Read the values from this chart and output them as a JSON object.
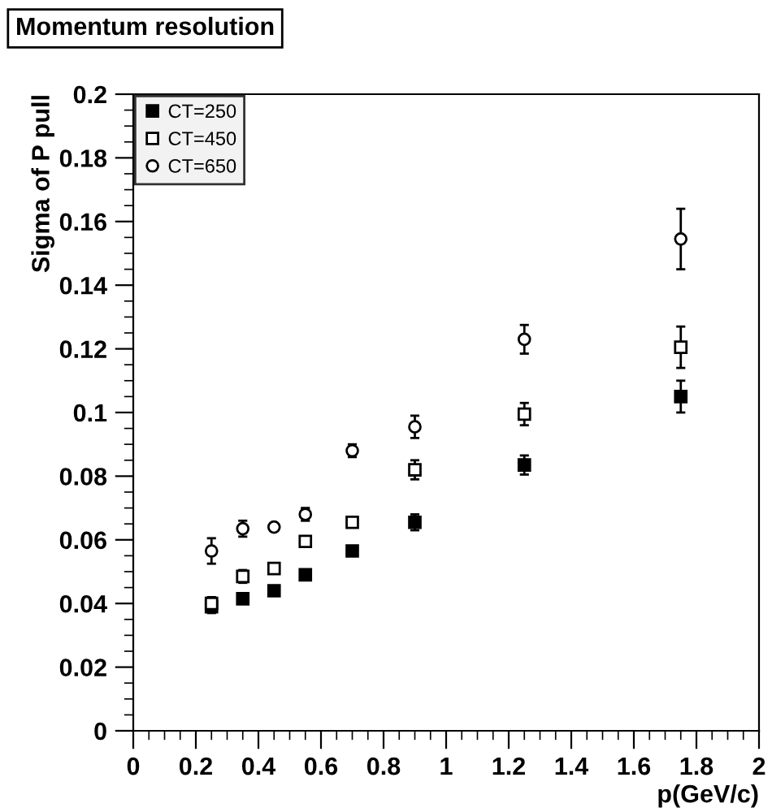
{
  "chart_data": {
    "type": "scatter",
    "title": "Momentum resolution",
    "xlabel": "p(GeV/c)",
    "ylabel": "Sigma of P pull",
    "x": [
      0.25,
      0.35,
      0.45,
      0.55,
      0.7,
      0.9,
      1.25,
      1.75
    ],
    "series": [
      {
        "name": "CT=250",
        "color": "#000000",
        "marker": "square",
        "values": [
          0.039,
          0.0415,
          0.044,
          0.049,
          0.0565,
          0.0655,
          0.0835,
          0.105
        ],
        "errors": [
          0.002,
          0.001,
          0.001,
          0.001,
          0.001,
          0.0025,
          0.003,
          0.005
        ]
      },
      {
        "name": "CT=450",
        "color": "#000000",
        "marker": "square",
        "values": [
          0.04,
          0.0485,
          0.051,
          0.0595,
          0.0655,
          0.082,
          0.0995,
          0.1205
        ],
        "errors": [
          0.002,
          0.002,
          0.001,
          0.001,
          0.001,
          0.003,
          0.0035,
          0.0065
        ]
      },
      {
        "name": "CT=650",
        "color": "#000000",
        "marker": "circle",
        "values": [
          0.0565,
          0.0635,
          0.064,
          0.068,
          0.088,
          0.0955,
          0.123,
          0.1545
        ],
        "errors": [
          0.004,
          0.0025,
          0.001,
          0.002,
          0.002,
          0.0035,
          0.0045,
          0.0095
        ]
      }
    ],
    "xlim": [
      0,
      2
    ],
    "ylim": [
      0,
      0.2
    ],
    "xticks": [
      0,
      0.2,
      0.4,
      0.6,
      0.8,
      1,
      1.2,
      1.4,
      1.6,
      1.8,
      2
    ],
    "yticks": [
      0,
      0.02,
      0.04,
      0.06,
      0.08,
      0.1,
      0.12,
      0.14,
      0.16,
      0.18,
      0.2
    ],
    "grid": false,
    "legend": "top left"
  }
}
